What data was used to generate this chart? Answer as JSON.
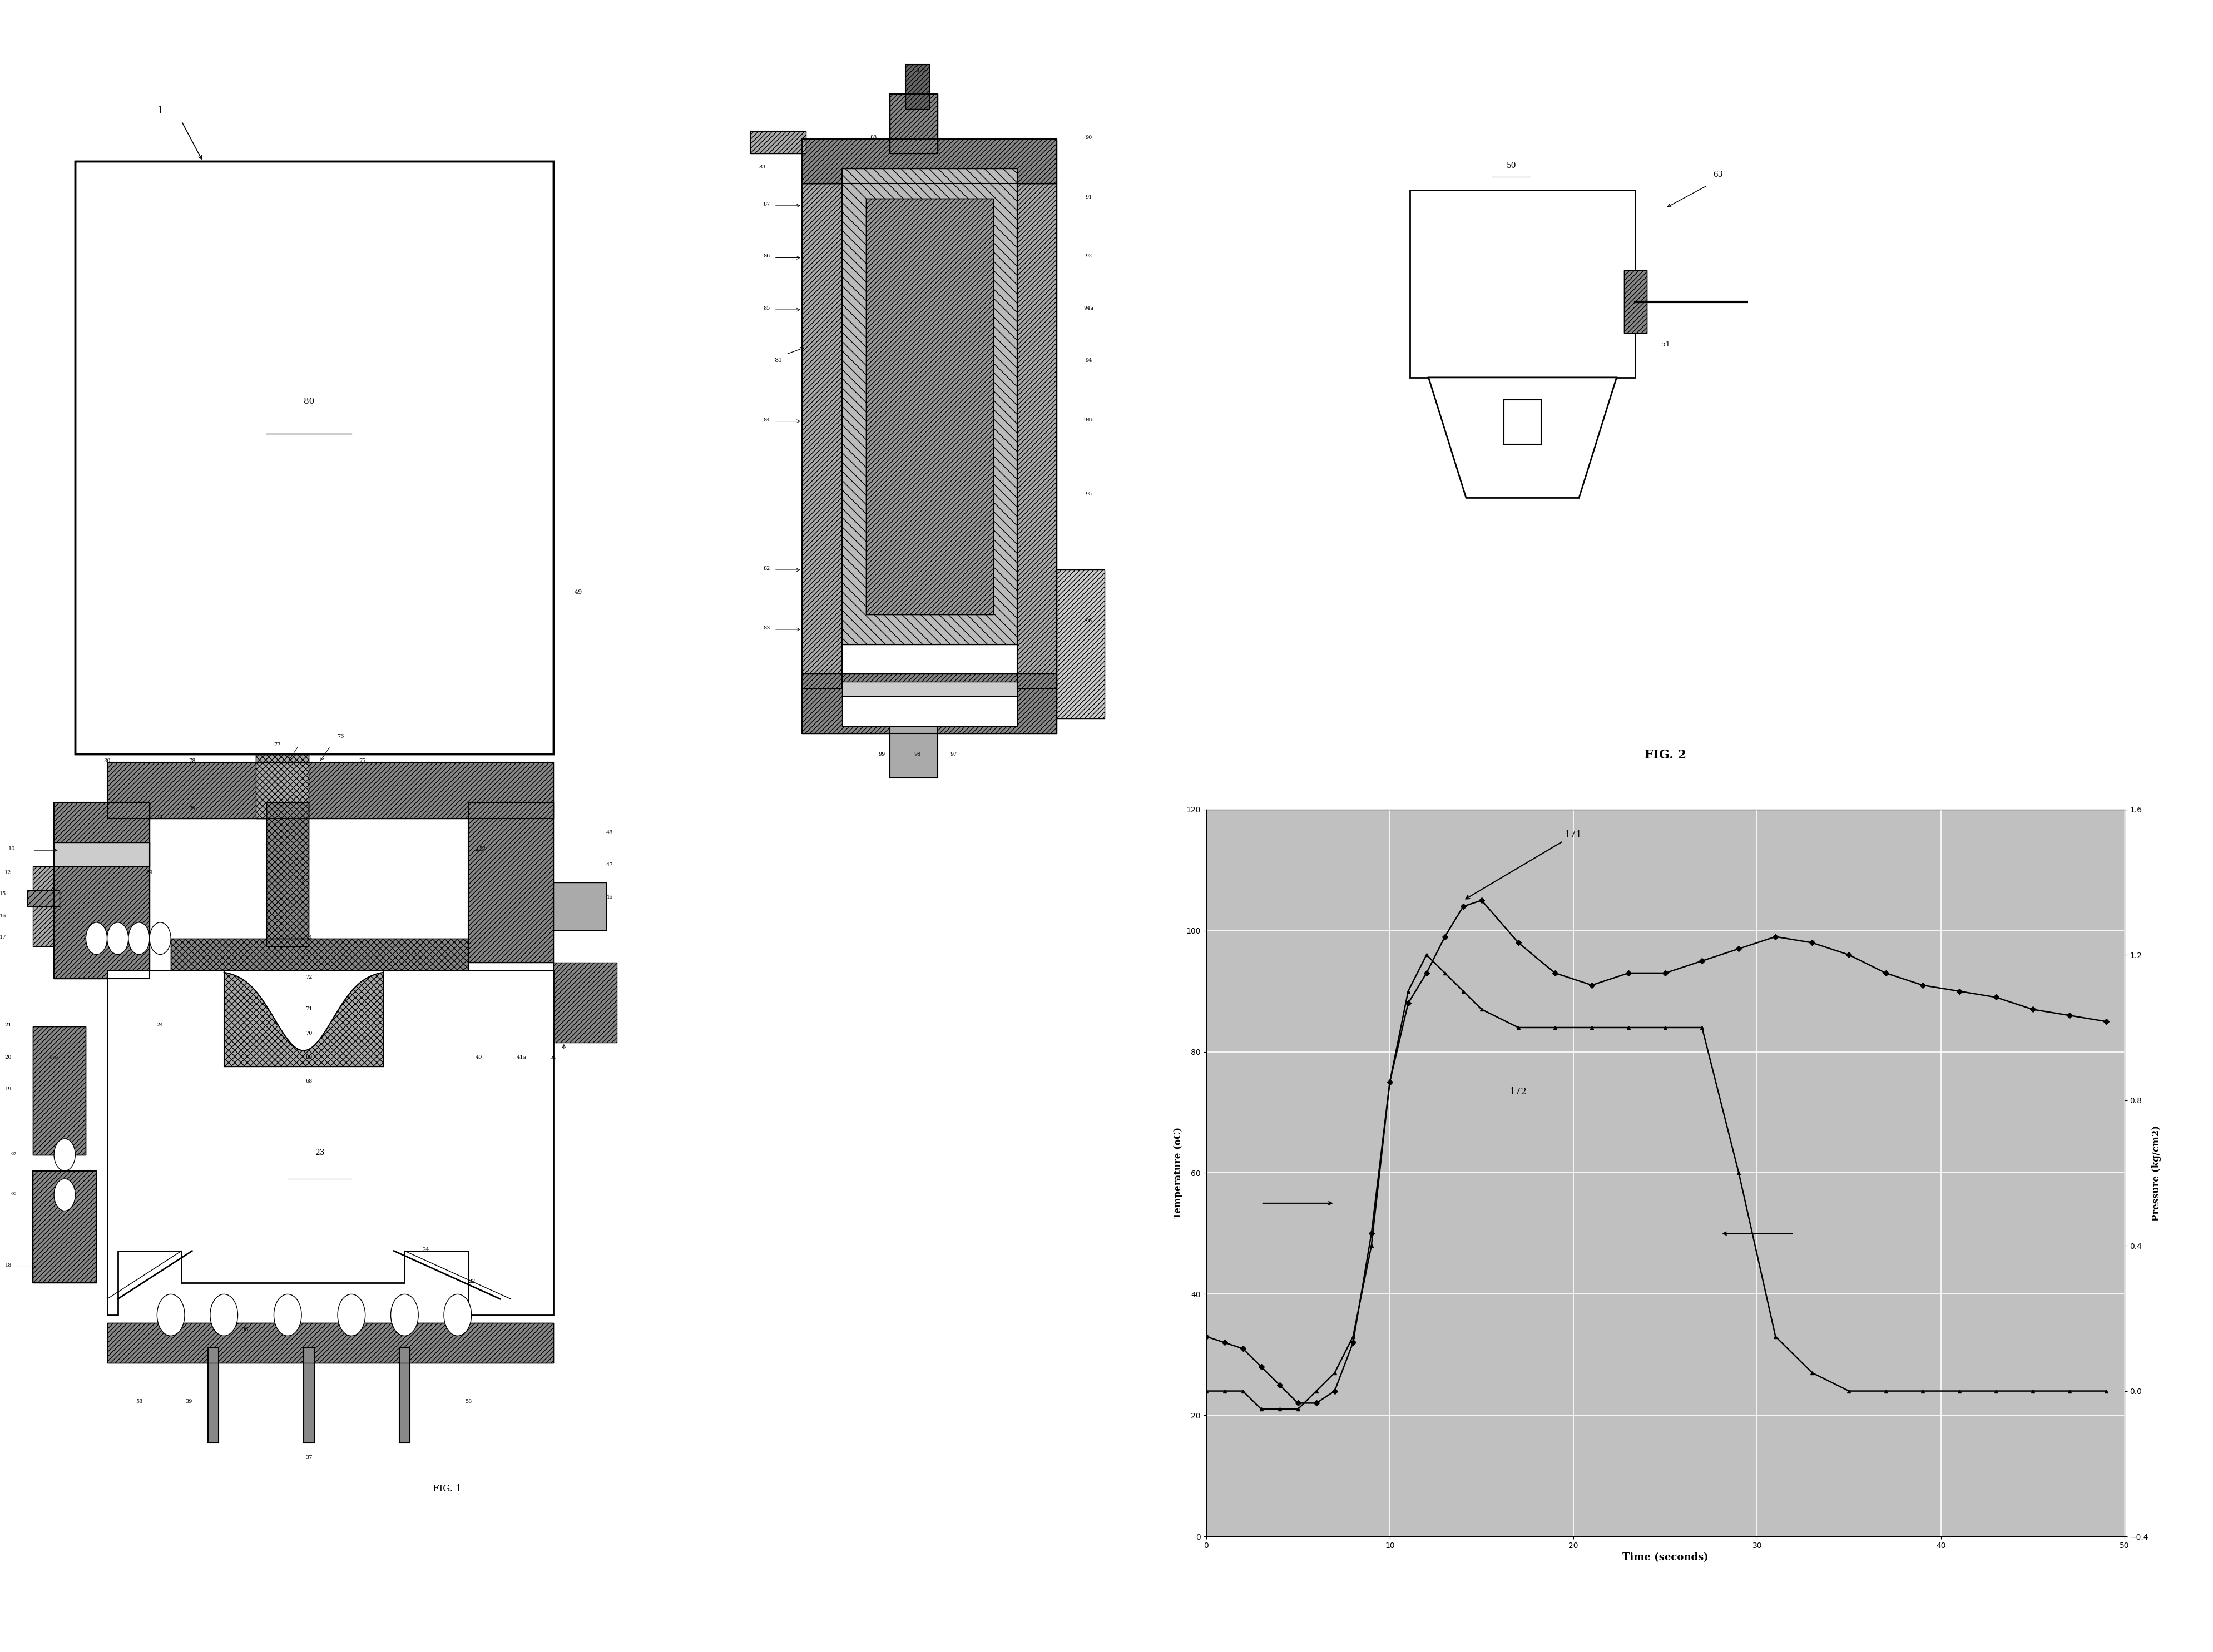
{
  "page_bg": "#ffffff",
  "fig2": {
    "title": "FIG. 2",
    "xlabel": "Time (seconds)",
    "ylabel_left": "Temperature (oC)",
    "ylabel_right": "Pressure (kg/cm2)",
    "xlim": [
      0,
      50
    ],
    "ylim_left": [
      0,
      120
    ],
    "ylim_right": [
      -0.4,
      1.6
    ],
    "xticks": [
      0,
      10,
      20,
      30,
      40,
      50
    ],
    "yticks_left": [
      0,
      20,
      40,
      60,
      80,
      100,
      120
    ],
    "yticks_right": [
      -0.4,
      0.0,
      0.4,
      0.8,
      1.2,
      1.6
    ],
    "bg_color": "#c0c0c0",
    "grid_color": "#ffffff",
    "temp_x": [
      0,
      1,
      2,
      3,
      4,
      5,
      6,
      7,
      8,
      9,
      10,
      11,
      12,
      13,
      14,
      15,
      17,
      19,
      21,
      23,
      25,
      27,
      29,
      31,
      33,
      35,
      37,
      39,
      41,
      43,
      45,
      47,
      49
    ],
    "temp_y": [
      33,
      32,
      31,
      28,
      25,
      22,
      22,
      24,
      32,
      50,
      75,
      88,
      93,
      99,
      104,
      105,
      98,
      93,
      91,
      93,
      93,
      95,
      97,
      99,
      98,
      96,
      93,
      91,
      90,
      89,
      87,
      86,
      85
    ],
    "pressure_x": [
      0,
      1,
      2,
      3,
      4,
      5,
      6,
      7,
      8,
      9,
      10,
      11,
      12,
      13,
      14,
      15,
      17,
      19,
      21,
      23,
      25,
      27,
      29,
      31,
      33,
      35,
      37,
      39,
      41,
      43,
      45,
      47,
      49
    ],
    "pressure_y": [
      0.0,
      0.0,
      0.0,
      -0.05,
      -0.05,
      -0.05,
      0.0,
      0.05,
      0.15,
      0.4,
      0.85,
      1.1,
      1.2,
      1.15,
      1.1,
      1.05,
      1.0,
      1.0,
      1.0,
      1.0,
      1.0,
      1.0,
      0.6,
      0.15,
      0.05,
      0.0,
      0.0,
      0.0,
      0.0,
      0.0,
      0.0,
      0.0,
      0.0
    ],
    "label_171": "171",
    "label_172": "172",
    "outer_box_color": "#aaaaaa"
  }
}
